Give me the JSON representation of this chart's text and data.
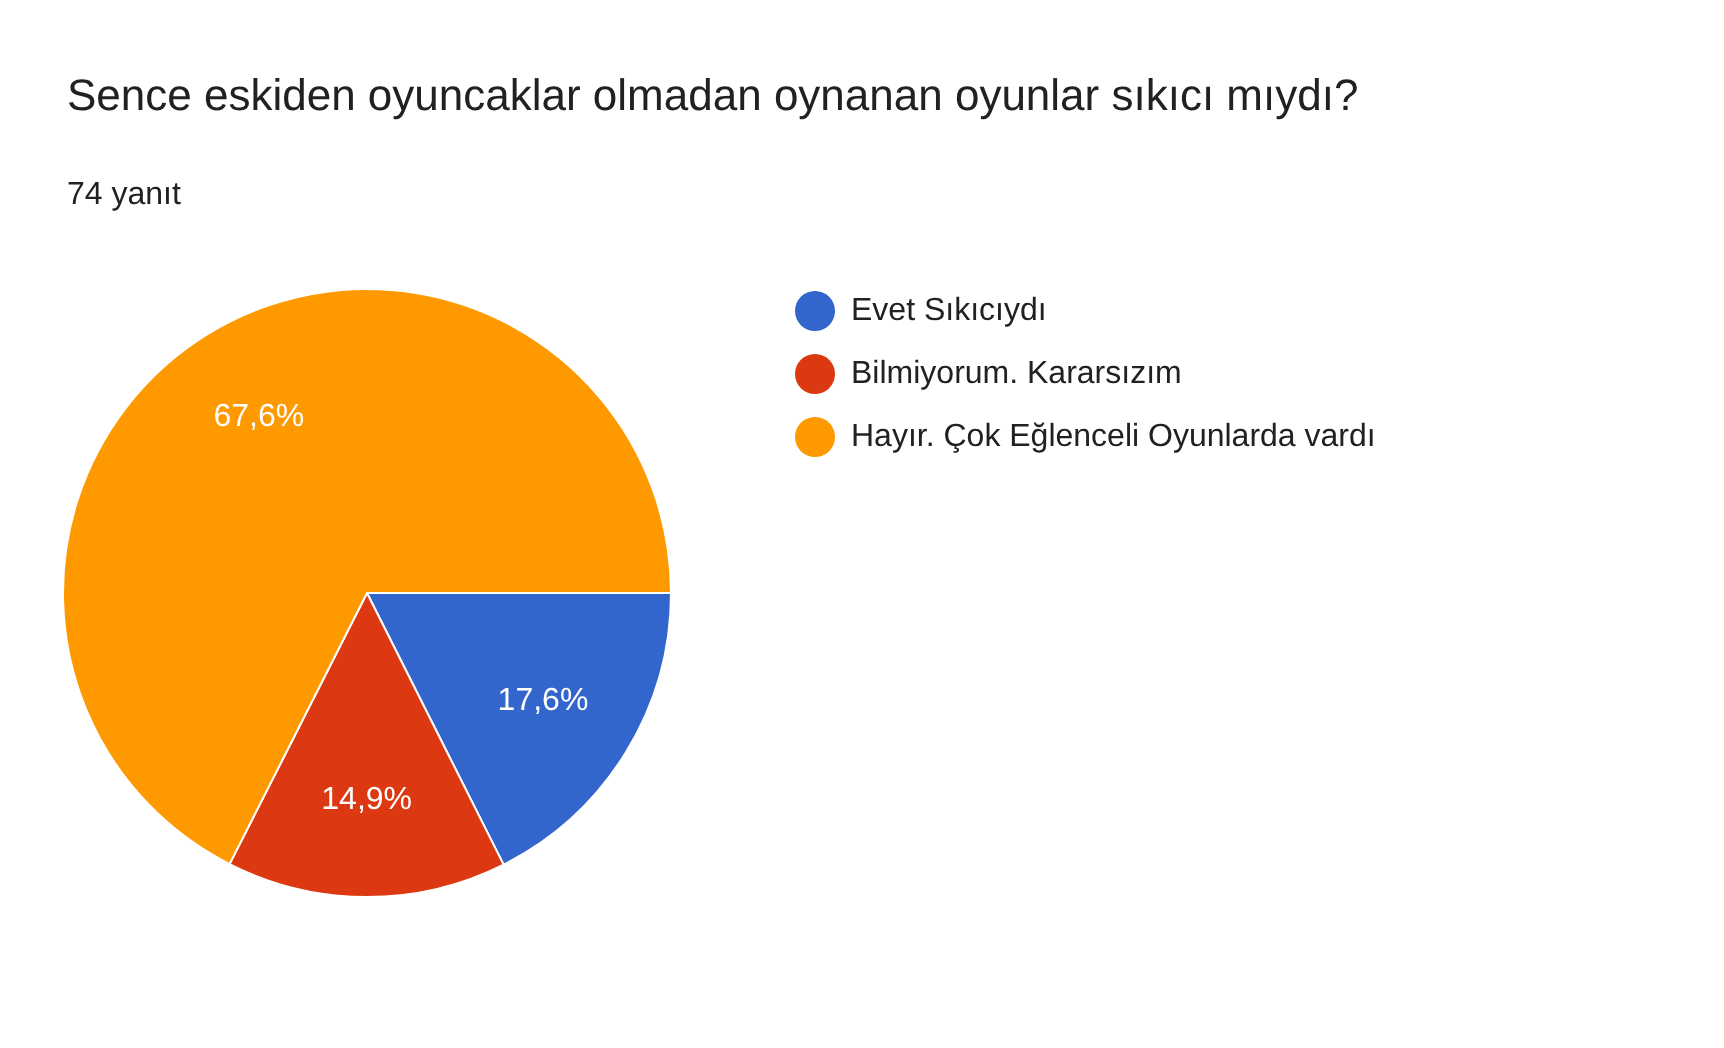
{
  "chart_data": {
    "type": "pie",
    "title": "Sence eskiden oyuncaklar olmadan oynanan oyunlar sıkıcı mıydı?",
    "subtitle": "74 yanıt",
    "categories": [
      "Evet Sıkıcıydı",
      "Bilmiyorum. Kararsızım",
      "Hayır. Çok Eğlenceli Oyunlarda vardı"
    ],
    "values": [
      17.6,
      14.9,
      67.6
    ],
    "colors": [
      "#3366cc",
      "#dc3912",
      "#ff9900"
    ],
    "value_labels": [
      "17,6%",
      "14,9%",
      "67,6%"
    ],
    "legend": "right"
  }
}
